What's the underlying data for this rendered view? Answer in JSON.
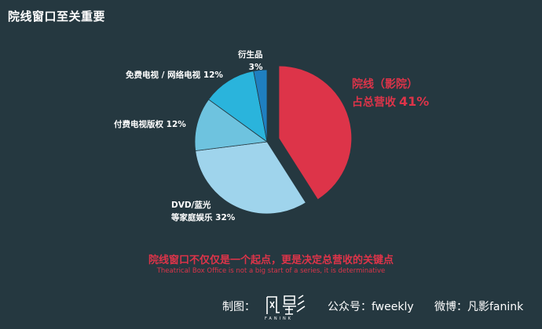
{
  "title": "院线窗口至关重要",
  "chart_data": {
    "type": "pie",
    "slices": [
      {
        "label_lines": [
          "院线（影院）",
          "占总营收"
        ],
        "value": 41,
        "value_label": "41%",
        "color": "#dd3449",
        "exploded": true
      },
      {
        "label_lines": [
          "DVD/蓝光",
          "等家庭娱乐"
        ],
        "value": 32,
        "value_label": "32%",
        "color": "#9fd4ec",
        "exploded": false
      },
      {
        "label_lines": [
          "付费电视版权"
        ],
        "value": 12,
        "value_label": "12%",
        "color": "#6ec3df",
        "exploded": false
      },
      {
        "label_lines": [
          "免费电视 / 网络电视"
        ],
        "value": 12,
        "value_label": "12%",
        "color": "#2ab4dc",
        "exploded": false
      },
      {
        "label_lines": [
          "衍生品"
        ],
        "value": 3,
        "value_label": "3%",
        "color": "#1f7fc0",
        "exploded": false
      }
    ]
  },
  "caption": {
    "cn": "院线窗口不仅仅是一个起点，更是决定总营收的关键点",
    "en": "Theatrical Box Office is not a big start of a series, it is determinative"
  },
  "footer": {
    "made_by_label": "制图：",
    "logo_text": "FANINK",
    "wechat": "公众号：fweekly",
    "weibo": "微博：凡影fanink"
  }
}
